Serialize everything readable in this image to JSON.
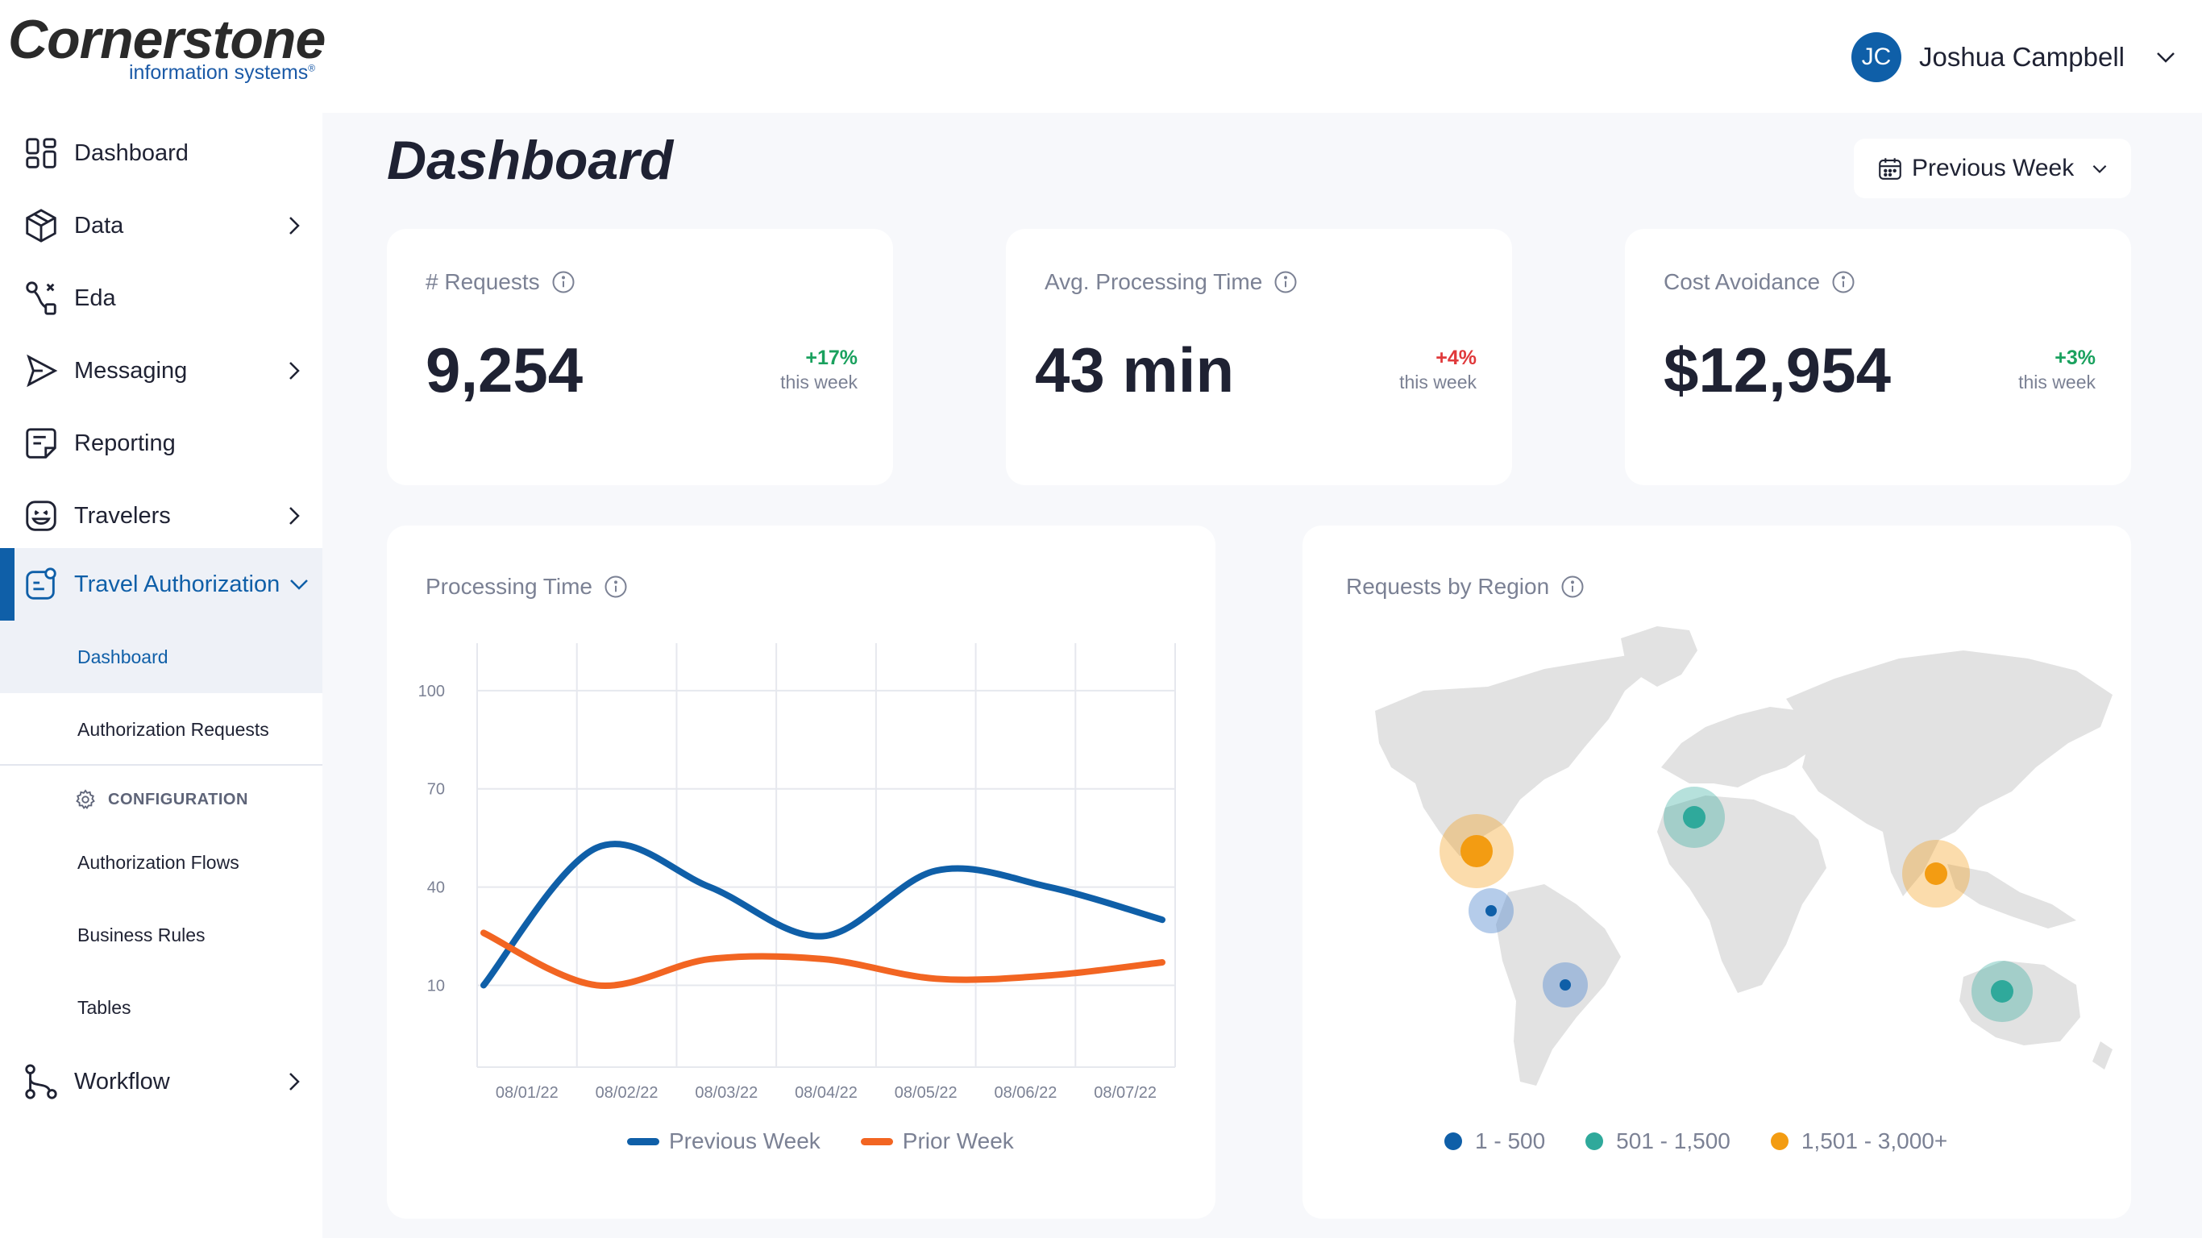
{
  "brand": {
    "name": "Cornerstone",
    "tagline": "information systems"
  },
  "user": {
    "initials": "JC",
    "name": "Joshua Campbell"
  },
  "sidebar": {
    "items": [
      {
        "label": "Dashboard",
        "icon": "grid-icon"
      },
      {
        "label": "Data",
        "icon": "cube-icon"
      },
      {
        "label": "Eda",
        "icon": "route-icon"
      },
      {
        "label": "Messaging",
        "icon": "send-icon"
      },
      {
        "label": "Reporting",
        "icon": "document-icon"
      },
      {
        "label": "Travelers",
        "icon": "face-icon"
      },
      {
        "label": "Travel Authorization",
        "icon": "badge-icon"
      },
      {
        "label": "Workflow",
        "icon": "flow-icon"
      }
    ],
    "sub_items": [
      {
        "label": "Dashboard"
      },
      {
        "label": "Authorization Requests"
      }
    ],
    "config_label": "CONFIGURATION",
    "config_items": [
      {
        "label": "Authorization Flows"
      },
      {
        "label": "Business Rules"
      },
      {
        "label": "Tables"
      }
    ]
  },
  "main": {
    "title": "Dashboard",
    "period": "Previous Week",
    "kpis": [
      {
        "title": "# Requests",
        "value": "9,254",
        "change": "+17%",
        "sub": "this week"
      },
      {
        "title": "Avg. Processing Time",
        "value": "43 min",
        "change": "+4%",
        "sub": "this week"
      },
      {
        "title": "Cost Avoidance",
        "value": "$12,954",
        "change": "+3%",
        "sub": "this week"
      }
    ],
    "processing_panel_title": "Processing Time",
    "region_panel_title": "Requests by Region",
    "region_legend": [
      {
        "label": "1 - 500",
        "color": "#0f5fa8"
      },
      {
        "label": "501 - 1,500",
        "color": "#2fa99b"
      },
      {
        "label": "1,501 - 3,000+",
        "color": "#f39c12"
      }
    ]
  },
  "colors": {
    "accent": "#0f5fa8",
    "up": "#1aa15e",
    "down": "#e0393b",
    "series_1": "#0f5fa8",
    "series_2": "#f26522"
  },
  "chart_data": {
    "type": "line",
    "x": [
      "08/01/22",
      "08/02/22",
      "08/03/22",
      "08/04/22",
      "08/05/22",
      "08/06/22",
      "08/07/22"
    ],
    "series": [
      {
        "name": "Previous Week",
        "values": [
          10,
          52,
          40,
          25,
          45,
          40,
          30
        ],
        "color": "#0f5fa8"
      },
      {
        "name": "Prior Week",
        "values": [
          26,
          10,
          18,
          18,
          12,
          13,
          17
        ],
        "color": "#f26522"
      }
    ],
    "yticks": [
      10,
      40,
      70,
      100
    ],
    "ylim": [
      -15,
      113
    ],
    "grid": true,
    "legend": "bottom"
  }
}
